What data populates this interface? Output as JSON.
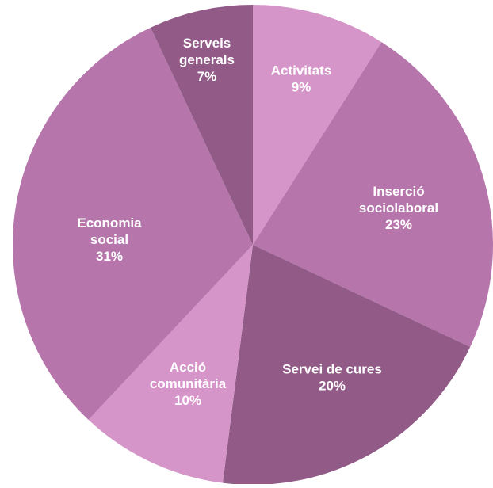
{
  "chart_data": {
    "type": "pie",
    "title": "",
    "slices": [
      {
        "label_lines": [
          "Activitats"
        ],
        "value": 9,
        "value_label": "9%",
        "color": "#d595c9"
      },
      {
        "label_lines": [
          "Inserció",
          "sociolaboral"
        ],
        "value": 23,
        "value_label": "23%",
        "color": "#b676ab"
      },
      {
        "label_lines": [
          "Servei de cures"
        ],
        "value": 20,
        "value_label": "20%",
        "color": "#915a87"
      },
      {
        "label_lines": [
          "Acció",
          "comunitària"
        ],
        "value": 10,
        "value_label": "10%",
        "color": "#d595c9"
      },
      {
        "label_lines": [
          "Economia",
          "social"
        ],
        "value": 31,
        "value_label": "31%",
        "color": "#b676ab"
      },
      {
        "label_lines": [
          "Serveis",
          "generals"
        ],
        "value": 7,
        "value_label": "7%",
        "color": "#915a87"
      }
    ],
    "start_angle_deg": 0,
    "direction": "clockwise",
    "legend": "none",
    "label_color": "#ffffff"
  }
}
